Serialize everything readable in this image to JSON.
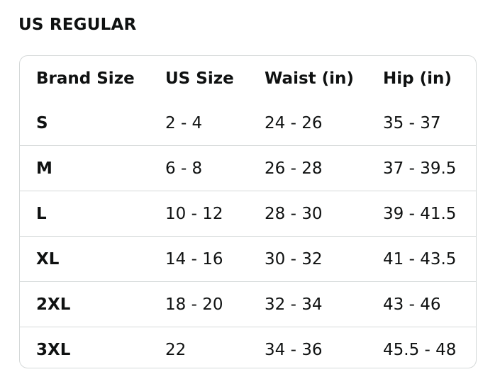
{
  "title": "US REGULAR",
  "headers": [
    "Brand Size",
    "US Size",
    "Waist (in)",
    "Hip (in)"
  ],
  "rows": [
    {
      "brand_size": "S",
      "us_size": "2 - 4",
      "waist": "24 - 26",
      "hip": "35 - 37"
    },
    {
      "brand_size": "M",
      "us_size": "6 - 8",
      "waist": "26 - 28",
      "hip": "37 - 39.5"
    },
    {
      "brand_size": "L",
      "us_size": "10 - 12",
      "waist": "28 - 30",
      "hip": "39 - 41.5"
    },
    {
      "brand_size": "XL",
      "us_size": "14 - 16",
      "waist": "30 - 32",
      "hip": "41 - 43.5"
    },
    {
      "brand_size": "2XL",
      "us_size": "18 - 20",
      "waist": "32 - 34",
      "hip": "43 - 46"
    },
    {
      "brand_size": "3XL",
      "us_size": "22",
      "waist": "34 - 36",
      "hip": "45.5 - 48"
    }
  ],
  "colors": {
    "text": "#0f1111",
    "border": "#d5d9d9",
    "background": "#ffffff"
  }
}
